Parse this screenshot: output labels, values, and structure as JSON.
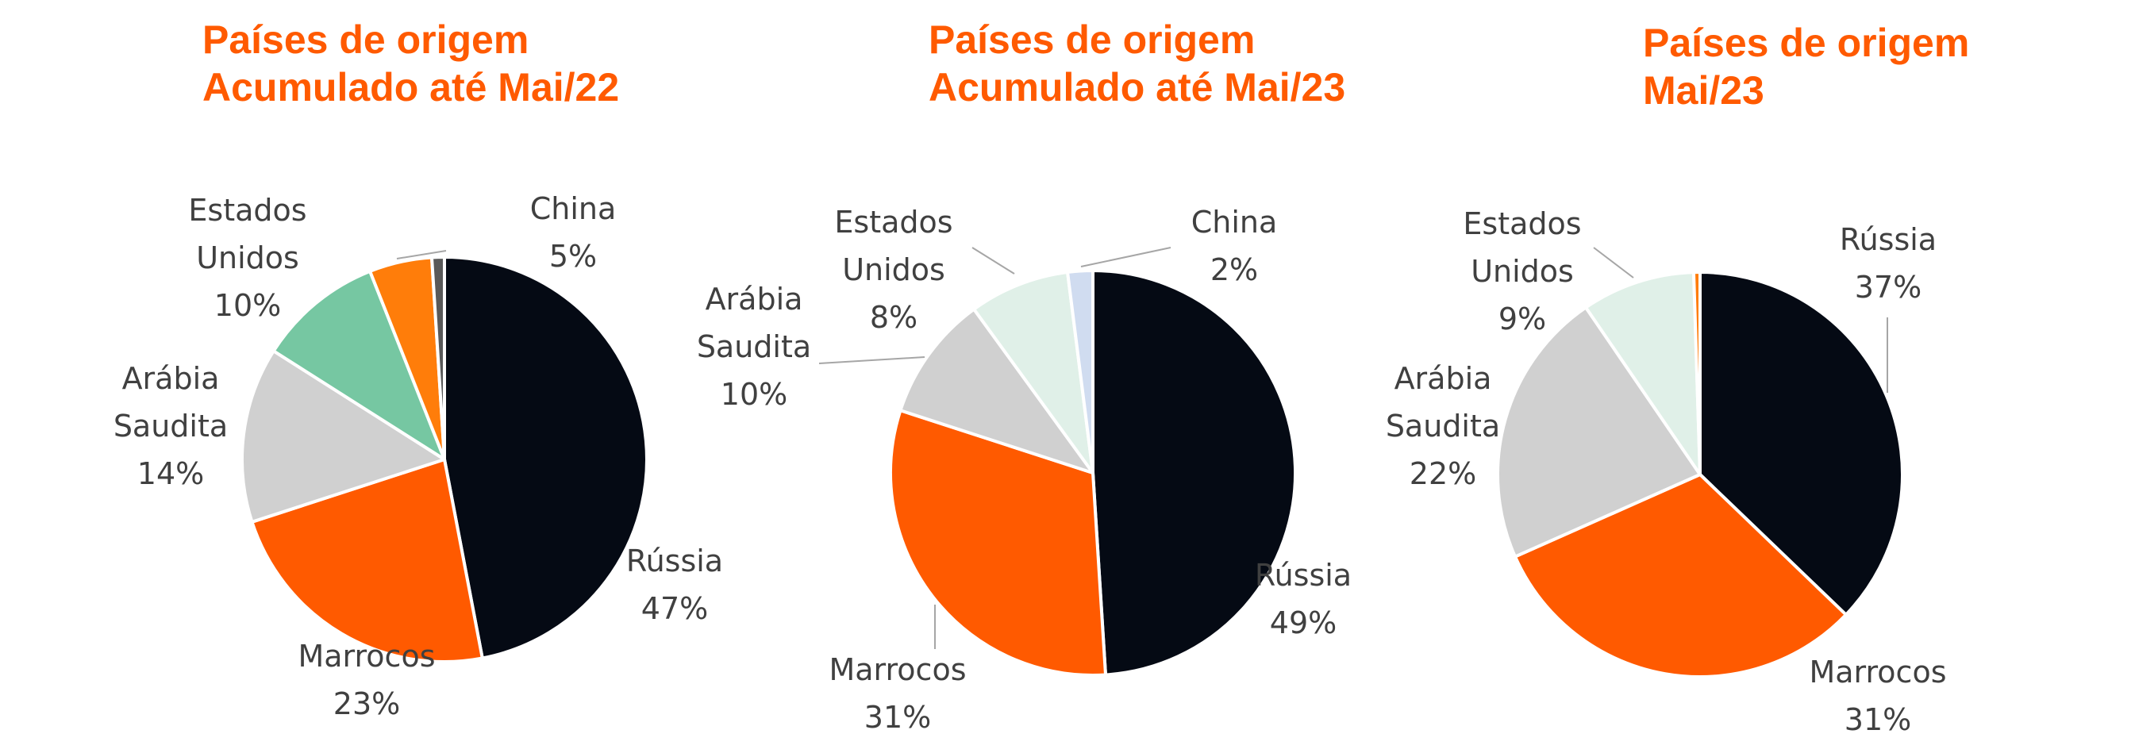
{
  "accent_color": "#ff5a00",
  "chart_data": [
    {
      "type": "pie",
      "title": [
        "Países de origem",
        "Acumulado até Mai/22"
      ],
      "slices": [
        {
          "label": [
            "Rússia"
          ],
          "value": 47,
          "value_label": "47%",
          "color": "#050a14"
        },
        {
          "label": [
            "Marrocos"
          ],
          "value": 23,
          "value_label": "23%",
          "color": "#ff5a00"
        },
        {
          "label": [
            "Arábia",
            "Saudita"
          ],
          "value": 14,
          "value_label": "14%",
          "color": "#d0d0d0"
        },
        {
          "label": [
            "Estados",
            "Unidos"
          ],
          "value": 10,
          "value_label": "10%",
          "color": "#76c7a2"
        },
        {
          "label": [
            "China"
          ],
          "value": 5,
          "value_label": "5%",
          "color": "#ff7d0a"
        },
        {
          "label": [
            ""
          ],
          "value": 1,
          "value_label": "",
          "color": "#595959"
        }
      ]
    },
    {
      "type": "pie",
      "title": [
        "Países de origem",
        "Acumulado até Mai/23"
      ],
      "slices": [
        {
          "label": [
            "Rússia"
          ],
          "value": 49,
          "value_label": "49%",
          "color": "#050a14"
        },
        {
          "label": [
            "Marrocos"
          ],
          "value": 31,
          "value_label": "31%",
          "color": "#ff5a00"
        },
        {
          "label": [
            "Arábia",
            "Saudita"
          ],
          "value": 10,
          "value_label": "10%",
          "color": "#d0d0d0"
        },
        {
          "label": [
            "Estados",
            "Unidos"
          ],
          "value": 8,
          "value_label": "8%",
          "color": "#e0f0e8"
        },
        {
          "label": [
            "China"
          ],
          "value": 2,
          "value_label": "2%",
          "color": "#d0dcf0"
        }
      ]
    },
    {
      "type": "pie",
      "title": [
        "Países de origem",
        "Mai/23"
      ],
      "slices": [
        {
          "label": [
            "Rússia"
          ],
          "value": 37,
          "value_label": "37%",
          "color": "#050a14"
        },
        {
          "label": [
            "Marrocos"
          ],
          "value": 31,
          "value_label": "31%",
          "color": "#ff5a00"
        },
        {
          "label": [
            "Arábia",
            "Saudita"
          ],
          "value": 22,
          "value_label": "22%",
          "color": "#d0d0d0"
        },
        {
          "label": [
            "Estados",
            "Unidos"
          ],
          "value": 9,
          "value_label": "9%",
          "color": "#e0f0e8"
        },
        {
          "label": [
            ""
          ],
          "value": 0.5,
          "value_label": "",
          "color": "#ff7d0a"
        }
      ]
    }
  ]
}
